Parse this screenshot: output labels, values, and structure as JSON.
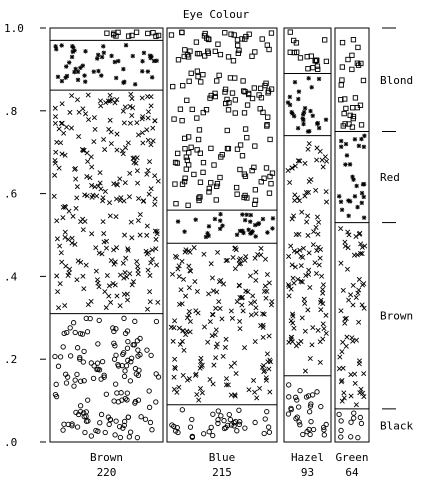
{
  "chart_data": {
    "type": "mosaic",
    "title": "Eye Colour",
    "y_ticks": [
      ".0",
      ".2",
      ".4",
      ".6",
      ".8",
      "1.0"
    ],
    "y_tick_values": [
      0,
      0.2,
      0.4,
      0.6,
      0.8,
      1.0
    ],
    "ylim": [
      0,
      1
    ],
    "eye_colours": [
      {
        "name": "Brown",
        "total_label": "220",
        "total": 220
      },
      {
        "name": "Blue",
        "total_label": "215",
        "total": 215
      },
      {
        "name": "Hazel",
        "total_label": "93",
        "total": 93
      },
      {
        "name": "Green",
        "total_label": "64",
        "total": 64
      }
    ],
    "hair_colours": [
      {
        "name": "Black",
        "symbol": "circle"
      },
      {
        "name": "Brown",
        "symbol": "x"
      },
      {
        "name": "Red",
        "symbol": "star"
      },
      {
        "name": "Blond",
        "symbol": "square"
      }
    ],
    "series": [
      {
        "name": "Brown",
        "values": [
          0.31,
          0.54,
          0.12,
          0.03
        ]
      },
      {
        "name": "Blue",
        "values": [
          0.09,
          0.39,
          0.08,
          0.44
        ]
      },
      {
        "name": "Hazel",
        "values": [
          0.16,
          0.58,
          0.15,
          0.11
        ]
      },
      {
        "name": "Green",
        "values": [
          0.08,
          0.45,
          0.22,
          0.25
        ]
      }
    ],
    "legend_position": "right",
    "grid": false
  }
}
